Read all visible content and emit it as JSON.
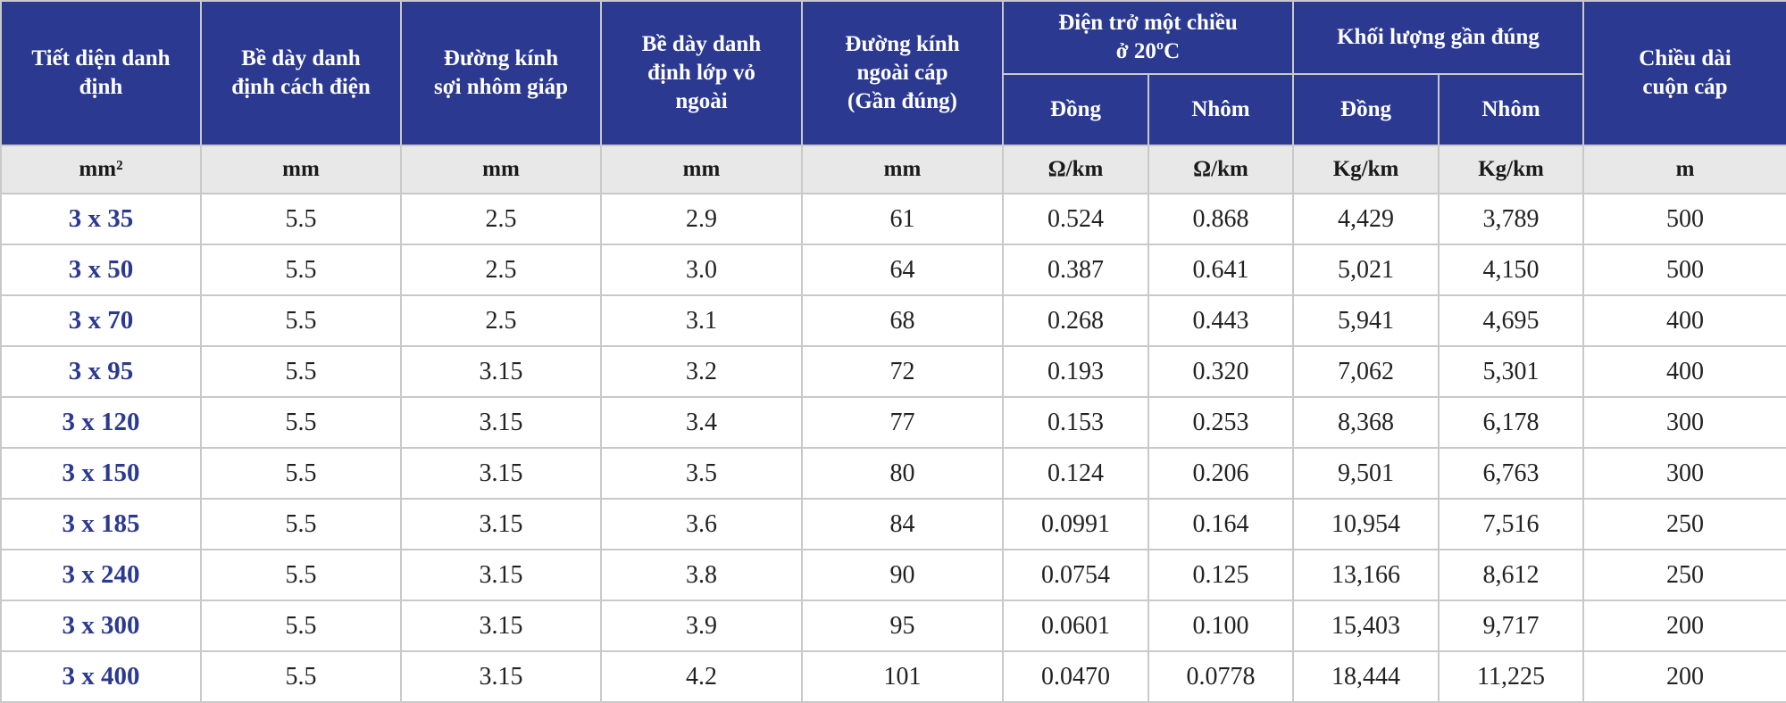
{
  "header": {
    "c1": "Tiết diện danh\nđịnh",
    "c2": "Bề dày danh\nđịnh cách điện",
    "c3": "Đường kính\nsợi nhôm giáp",
    "c4": "Bề dày danh\nđịnh lớp vỏ\nngoài",
    "c5": "Đường kính\nngoài cáp\n(Gần đúng)",
    "resistance": "Điện trở một chiều\nở 20ºC",
    "mass": "Khối lượng gần đúng",
    "c10": "Chiều dài\ncuộn cáp",
    "copper_r": "Đồng",
    "aluminum_r": "Nhôm",
    "copper_m": "Đồng",
    "aluminum_m": "Nhôm"
  },
  "units": [
    "mm²",
    "mm",
    "mm",
    "mm",
    "mm",
    "Ω/km",
    "Ω/km",
    "Kg/km",
    "Kg/km",
    "m"
  ],
  "rows": [
    [
      "3 x 35",
      "5.5",
      "2.5",
      "2.9",
      "61",
      "0.524",
      "0.868",
      "4,429",
      "3,789",
      "500"
    ],
    [
      "3 x 50",
      "5.5",
      "2.5",
      "3.0",
      "64",
      "0.387",
      "0.641",
      "5,021",
      "4,150",
      "500"
    ],
    [
      "3 x 70",
      "5.5",
      "2.5",
      "3.1",
      "68",
      "0.268",
      "0.443",
      "5,941",
      "4,695",
      "400"
    ],
    [
      "3 x 95",
      "5.5",
      "3.15",
      "3.2",
      "72",
      "0.193",
      "0.320",
      "7,062",
      "5,301",
      "400"
    ],
    [
      "3 x 120",
      "5.5",
      "3.15",
      "3.4",
      "77",
      "0.153",
      "0.253",
      "8,368",
      "6,178",
      "300"
    ],
    [
      "3 x 150",
      "5.5",
      "3.15",
      "3.5",
      "80",
      "0.124",
      "0.206",
      "9,501",
      "6,763",
      "300"
    ],
    [
      "3 x 185",
      "5.5",
      "3.15",
      "3.6",
      "84",
      "0.0991",
      "0.164",
      "10,954",
      "7,516",
      "250"
    ],
    [
      "3 x 240",
      "5.5",
      "3.15",
      "3.8",
      "90",
      "0.0754",
      "0.125",
      "13,166",
      "8,612",
      "250"
    ],
    [
      "3 x 300",
      "5.5",
      "3.15",
      "3.9",
      "95",
      "0.0601",
      "0.100",
      "15,403",
      "9,717",
      "200"
    ],
    [
      "3 x 400",
      "5.5",
      "3.15",
      "4.2",
      "101",
      "0.0470",
      "0.0778",
      "18,444",
      "11,225",
      "200"
    ]
  ]
}
